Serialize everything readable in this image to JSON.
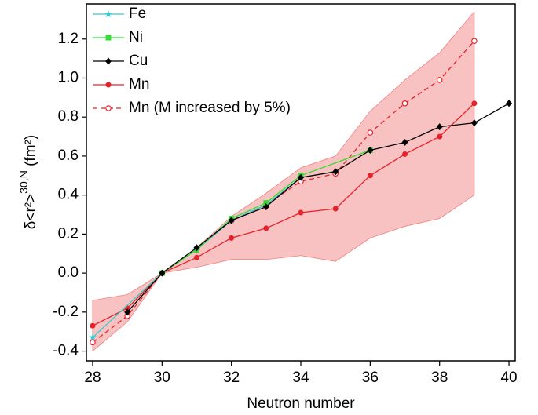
{
  "chart_data": {
    "type": "line",
    "xlabel": "Neutron number",
    "ylabel": [
      "δ<r²>",
      "30,N",
      " (fm²)"
    ],
    "xlim": [
      27.82,
      40.18
    ],
    "xticks": [
      28,
      30,
      32,
      34,
      36,
      38,
      40
    ],
    "ylim": [
      -0.45,
      1.38
    ],
    "yticks": [
      -0.4,
      -0.2,
      {
        "value": 0,
        "label": "0.0"
      },
      0.2,
      0.4,
      0.6,
      0.8,
      {
        "value": 1,
        "label": "1.0"
      },
      1.2
    ],
    "band": {
      "color": "#f7a8a8",
      "x": [
        28,
        29,
        30,
        31,
        32,
        33,
        34,
        35,
        36,
        37,
        38,
        39
      ],
      "upper": [
        -0.14,
        -0.11,
        0.0,
        0.13,
        0.29,
        0.41,
        0.54,
        0.6,
        0.83,
        0.99,
        1.13,
        1.34
      ],
      "lower": [
        -0.4,
        -0.25,
        0.0,
        0.03,
        0.07,
        0.07,
        0.09,
        0.06,
        0.18,
        0.24,
        0.28,
        0.4
      ]
    },
    "series": [
      {
        "name": "Fe",
        "color": "#33cccc",
        "marker": "star",
        "dash": false,
        "x": [
          28,
          30,
          31,
          32,
          33,
          34
        ],
        "values": [
          -0.33,
          0.0,
          0.12,
          0.27,
          0.35,
          0.49
        ]
      },
      {
        "name": "Ni",
        "color": "#33dd33",
        "marker": "square",
        "dash": false,
        "x": [
          30,
          31,
          32,
          33,
          34,
          36
        ],
        "values": [
          0.0,
          0.12,
          0.28,
          0.36,
          0.5,
          0.63
        ]
      },
      {
        "name": "Cu",
        "color": "#000000",
        "marker": "diamond",
        "dash": false,
        "x": [
          29,
          30,
          31,
          32,
          33,
          34,
          35,
          36,
          37,
          38,
          39,
          40
        ],
        "values": [
          -0.2,
          0.0,
          0.13,
          0.27,
          0.34,
          0.49,
          0.52,
          0.63,
          0.67,
          0.75,
          0.77,
          0.87
        ]
      },
      {
        "name": "Mn",
        "color": "#e8222a",
        "marker": "circle",
        "dash": false,
        "x": [
          28,
          29,
          30,
          31,
          32,
          33,
          34,
          35,
          36,
          37,
          38,
          39
        ],
        "values": [
          -0.27,
          -0.18,
          0.0,
          0.08,
          0.18,
          0.23,
          0.31,
          0.33,
          0.5,
          0.61,
          0.7,
          0.87
        ]
      },
      {
        "name": "Mn (M increased by 5%)",
        "color": "#e8222a",
        "marker": "open-circle",
        "dash": true,
        "x": [
          28,
          29,
          30,
          31,
          32,
          33,
          34,
          35,
          36,
          37,
          38,
          39
        ],
        "values": [
          -0.355,
          -0.22,
          0.0,
          0.12,
          0.27,
          0.35,
          0.47,
          0.51,
          0.72,
          0.87,
          0.99,
          1.19
        ]
      }
    ]
  }
}
